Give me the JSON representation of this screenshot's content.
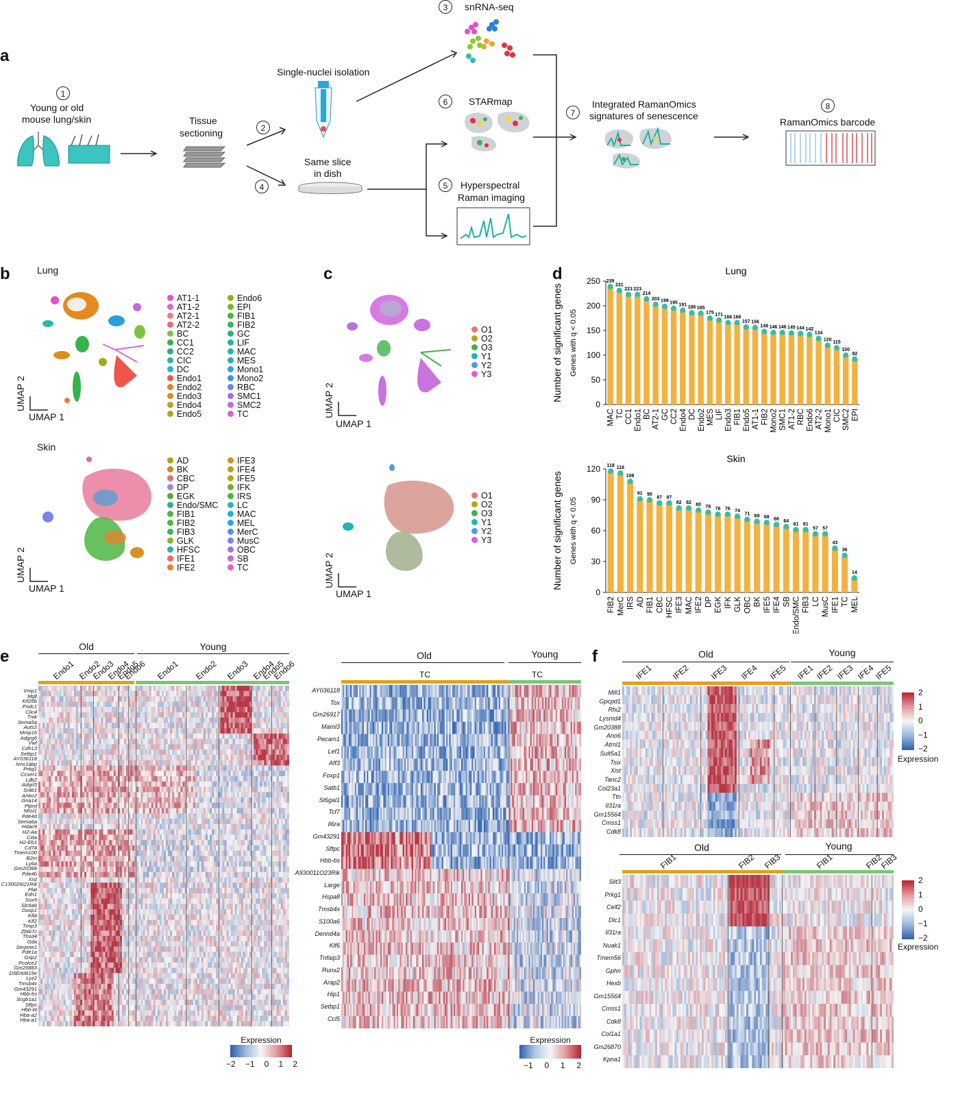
{
  "panels": {
    "a": "a",
    "b": "b",
    "c": "c",
    "d": "d",
    "e": "e",
    "f": "f"
  },
  "panel_a": {
    "steps": [
      {
        "num": "1",
        "label_line1": "Young or old",
        "label_line2": "mouse lung/skin"
      },
      {
        "num": "2",
        "label": "Tissue sectioning"
      },
      {
        "num": "3",
        "label": "snRNA-seq"
      },
      {
        "num": "4",
        "label": "Same slice in dish"
      },
      {
        "num": "5",
        "label_line1": "Hyperspectral",
        "label_line2": "Raman imaging"
      },
      {
        "num": "6",
        "label": "STARmap"
      },
      {
        "num": "7",
        "label_line1": "Integrated RamanOmics",
        "label_line2": "signatures of senescence"
      },
      {
        "num": "8",
        "label": "RamanOmics barcode"
      }
    ],
    "tissue_line1": "Tissue",
    "tissue_line2": "sectioning",
    "nuclei": "Single-nuclei isolation",
    "dish_line1": "Same slice",
    "dish_line2": "in dish"
  },
  "panel_b": {
    "lung_title": "Lung",
    "skin_title": "Skin",
    "axis_y": "UMAP 2",
    "axis_x": "UMAP 1",
    "lung_legend": [
      {
        "name": "AT1-1",
        "color": "#e84cc9"
      },
      {
        "name": "AT1-2",
        "color": "#e063d6"
      },
      {
        "name": "AT2-1",
        "color": "#f07b8a"
      },
      {
        "name": "AT2-2",
        "color": "#e9687b"
      },
      {
        "name": "BC",
        "color": "#7fc241"
      },
      {
        "name": "CC1",
        "color": "#35b34a"
      },
      {
        "name": "CC2",
        "color": "#2bb07a"
      },
      {
        "name": "CIC",
        "color": "#29b6a7"
      },
      {
        "name": "DC",
        "color": "#27b3d9"
      },
      {
        "name": "Endo1",
        "color": "#f0554b"
      },
      {
        "name": "Endo2",
        "color": "#ee7d2a"
      },
      {
        "name": "Endo3",
        "color": "#d8901b"
      },
      {
        "name": "Endo4",
        "color": "#c0a11a"
      },
      {
        "name": "Endo5",
        "color": "#a6a919"
      },
      {
        "name": "Endo6",
        "color": "#9aaa20"
      },
      {
        "name": "EPI",
        "color": "#7ab527"
      },
      {
        "name": "FIB1",
        "color": "#4eb833"
      },
      {
        "name": "FIB2",
        "color": "#33b85a"
      },
      {
        "name": "GC",
        "color": "#2ab57c"
      },
      {
        "name": "LIF",
        "color": "#28b596"
      },
      {
        "name": "MAC",
        "color": "#28b3b3"
      },
      {
        "name": "MES",
        "color": "#25aeca"
      },
      {
        "name": "Mono1",
        "color": "#2aa3de"
      },
      {
        "name": "Mono2",
        "color": "#3f93e6"
      },
      {
        "name": "RBC",
        "color": "#7b7fe8"
      },
      {
        "name": "SMC1",
        "color": "#a56de6"
      },
      {
        "name": "SMC2",
        "color": "#c665e0"
      },
      {
        "name": "TC",
        "color": "#dd5fcf"
      }
    ],
    "skin_legend": [
      {
        "name": "AD",
        "color": "#b0a31a"
      },
      {
        "name": "BK",
        "color": "#c28e1f"
      },
      {
        "name": "CBC",
        "color": "#e56a8e"
      },
      {
        "name": "DP",
        "color": "#9a85e3"
      },
      {
        "name": "EGK",
        "color": "#5aa72e"
      },
      {
        "name": "Endo/SMC",
        "color": "#2db380"
      },
      {
        "name": "FIB1",
        "color": "#4cb642"
      },
      {
        "name": "FIB2",
        "color": "#52b83a"
      },
      {
        "name": "FIB3",
        "color": "#36b85a"
      },
      {
        "name": "GLK",
        "color": "#8db22c"
      },
      {
        "name": "HFSC",
        "color": "#29b3a2"
      },
      {
        "name": "IFE1",
        "color": "#f06a5a"
      },
      {
        "name": "IFE2",
        "color": "#e8802e"
      },
      {
        "name": "IFE3",
        "color": "#d89020"
      },
      {
        "name": "IFE4",
        "color": "#cc9a1a"
      },
      {
        "name": "IFE5",
        "color": "#b9a318"
      },
      {
        "name": "IFK",
        "color": "#6cb127"
      },
      {
        "name": "IRS",
        "color": "#42b642"
      },
      {
        "name": "LC",
        "color": "#2bb5b8"
      },
      {
        "name": "MAC",
        "color": "#26afcf"
      },
      {
        "name": "MEL",
        "color": "#2aa4dc"
      },
      {
        "name": "MerC",
        "color": "#4a95e5"
      },
      {
        "name": "MusC",
        "color": "#7983e8"
      },
      {
        "name": "OBC",
        "color": "#a273e7"
      },
      {
        "name": "SB",
        "color": "#c866df"
      },
      {
        "name": "TC",
        "color": "#e261c8"
      }
    ]
  },
  "panel_c": {
    "axis_y": "UMAP 2",
    "axis_x": "UMAP 1",
    "legend": [
      {
        "name": "O1",
        "color": "#f07272"
      },
      {
        "name": "O2",
        "color": "#b8a31b"
      },
      {
        "name": "O3",
        "color": "#3fb34a"
      },
      {
        "name": "Y1",
        "color": "#20b5b5"
      },
      {
        "name": "Y2",
        "color": "#4f9ae6"
      },
      {
        "name": "Y3",
        "color": "#e35dd5"
      }
    ]
  },
  "chart_data": [
    {
      "type": "bar",
      "title": "Lung",
      "ylabel": "Number of significant genes",
      "ylabel2": "Genes with q < 0.05",
      "ylim": [
        0,
        250
      ],
      "yticks": [
        "0",
        "50",
        "100",
        "150",
        "200",
        "250"
      ],
      "categories": [
        "MAC",
        "TC",
        "CC1",
        "Endo1",
        "BC",
        "AT2-1",
        "GC",
        "CC2",
        "Endo4",
        "DC",
        "Endo2",
        "MES",
        "LIF",
        "Endo3",
        "FIB1",
        "Endo5",
        "AT1-1",
        "FIB2",
        "Mono2",
        "SMC1",
        "AT1-2",
        "RBC",
        "Endo6",
        "AT2-2",
        "Mono1",
        "CIC",
        "SMC2",
        "EPI"
      ],
      "values": [
        239,
        231,
        223,
        223,
        214,
        203,
        199,
        195,
        191,
        186,
        185,
        175,
        171,
        166,
        166,
        157,
        156,
        148,
        146,
        146,
        145,
        144,
        142,
        134,
        120,
        115,
        100,
        92
      ]
    },
    {
      "type": "bar",
      "title": "Skin",
      "ylabel": "Number of significant genes",
      "ylabel2": "Genes with q < 0.05",
      "ylim": [
        0,
        120
      ],
      "yticks": [
        "0",
        "30",
        "60",
        "90",
        "120"
      ],
      "categories": [
        "FIB2",
        "MerC",
        "IRS",
        "AD",
        "FIB1",
        "CBC",
        "HFSC",
        "IFE3",
        "MAC",
        "IFE2",
        "DP",
        "EGK",
        "IFK",
        "GLK",
        "OBC",
        "BK",
        "IFE5",
        "IFE4",
        "SB",
        "Endo/SMC",
        "FIB3",
        "LC",
        "MusC",
        "IFE1",
        "TC",
        "MEL"
      ],
      "values": [
        118,
        116,
        108,
        91,
        90,
        87,
        87,
        82,
        82,
        80,
        78,
        76,
        76,
        74,
        71,
        69,
        68,
        66,
        64,
        61,
        61,
        57,
        57,
        43,
        36,
        14
      ]
    }
  ],
  "panel_e_left": {
    "old": "Old",
    "young": "Young",
    "old_groups": [
      "Endo1",
      "Endo2",
      "Endo3",
      "Endo4",
      "Endo5",
      "Endo6"
    ],
    "young_groups": [
      "Endo1",
      "Endo2",
      "Endo3",
      "Endo4",
      "Endo5",
      "Endo6"
    ],
    "genes": [
      "Vmp1",
      "Mgll",
      "Kif26b",
      "Fndc1",
      "Clic4",
      "Tnik",
      "Sema5a",
      "Auts2",
      "Mmp16",
      "Adgrg6",
      "Vwf",
      "Cdh13",
      "Setbp1",
      "AY036118",
      "Ivns1abp",
      "Prkg1",
      "Ccser1",
      "Ldb2",
      "Adgrl3",
      "Sntb1",
      "Antxr2",
      "Gna14",
      "Ptprd",
      "Nhsl1",
      "Pde4d",
      "Sema6a",
      "Hdac9",
      "H2-Aa",
      "Ciita",
      "H2-Eb1",
      "Cd74",
      "Tmem100",
      "B2m",
      "Ly6a",
      "Gm20388",
      "Pde4b",
      "Xist",
      "C130026I21Rik",
      "Plat",
      "Edn1",
      "Sox5",
      "Slc6a6",
      "Dusp1",
      "Klf4",
      "Klf2",
      "Timp3",
      "Zbtb7c",
      "Thsd4",
      "Gda",
      "Serpine1",
      "Pde1a",
      "Grip2",
      "Pcolce2",
      "Gm26883",
      "D5Ertd615e",
      "Lyz2",
      "Tmsb4x",
      "Gm43291",
      "Hbb-bs",
      "Scgb1a1",
      "Sftpc",
      "Hbb-bt",
      "Hba-a2",
      "Hba-a1"
    ],
    "legend_title": "Expression",
    "ticks": [
      "−2",
      "−1",
      "0",
      "1",
      "2"
    ]
  },
  "panel_e_mid": {
    "old": "Old",
    "young": "Young",
    "old_group": "TC",
    "young_group": "TC",
    "genes": [
      "AY036118",
      "Tox",
      "Gm26917",
      "Maml3",
      "Pecam1",
      "Lef1",
      "Aff3",
      "Foxp1",
      "Satb1",
      "St6gal1",
      "Tcf7",
      "Il6ra",
      "Gm43291",
      "Sftpc",
      "Hbb-bs",
      "A930011O23Rik",
      "Large",
      "Hspa8",
      "Tmsb4x",
      "S100a6",
      "Dennd4a",
      "Klf6",
      "Tnfaip3",
      "Runx2",
      "Arap2",
      "Hip1",
      "Setbp1",
      "Ccl5"
    ],
    "legend_title": "Expression",
    "ticks": [
      "−1",
      "0",
      "1",
      "2"
    ]
  },
  "panel_f_top": {
    "old": "Old",
    "young": "Young",
    "old_groups": [
      "IFE1",
      "IFE2",
      "IFE3",
      "IFE4",
      "IFE5"
    ],
    "young_groups": [
      "IFE1",
      "IFE2",
      "IFE3",
      "IFE4",
      "IFE5"
    ],
    "genes": [
      "Mill1",
      "Gpcpd1",
      "Rfx2",
      "Lysmd4",
      "Gm20388",
      "Ano6",
      "Atrnl1",
      "Sult5a1",
      "Tsix",
      "Xist",
      "Tanc2",
      "Col23a1",
      "Ttn",
      "Il31ra",
      "Gm15564",
      "Cmss1",
      "Cdk8"
    ],
    "legend_title": "Expression",
    "ticks": [
      "2",
      "1",
      "0",
      "−1",
      "−2"
    ]
  },
  "panel_f_bottom": {
    "old": "Old",
    "young": "Young",
    "old_groups": [
      "FIB1",
      "FIB2",
      "FIB3"
    ],
    "young_groups": [
      "FIB1",
      "FIB2",
      "FIB3"
    ],
    "genes": [
      "Slit3",
      "Prkg1",
      "Celf2",
      "Dlc1",
      "Il31ra",
      "Nuak1",
      "Tmem56",
      "Gphn",
      "Hexb",
      "Gm15564",
      "Cmss1",
      "Cdk8",
      "Col1a1",
      "Gm26870",
      "Kpna1"
    ],
    "legend_title": "Expression",
    "ticks": [
      "2",
      "1",
      "0",
      "−1",
      "−2"
    ]
  },
  "colors": {
    "old_bar": "#e0a11e",
    "young_bar": "#7cc576",
    "bar": "#f3b23f",
    "bar_dot": "#2fbfae",
    "heat_red": "#c0303f",
    "heat_blue": "#3a6fb5"
  }
}
